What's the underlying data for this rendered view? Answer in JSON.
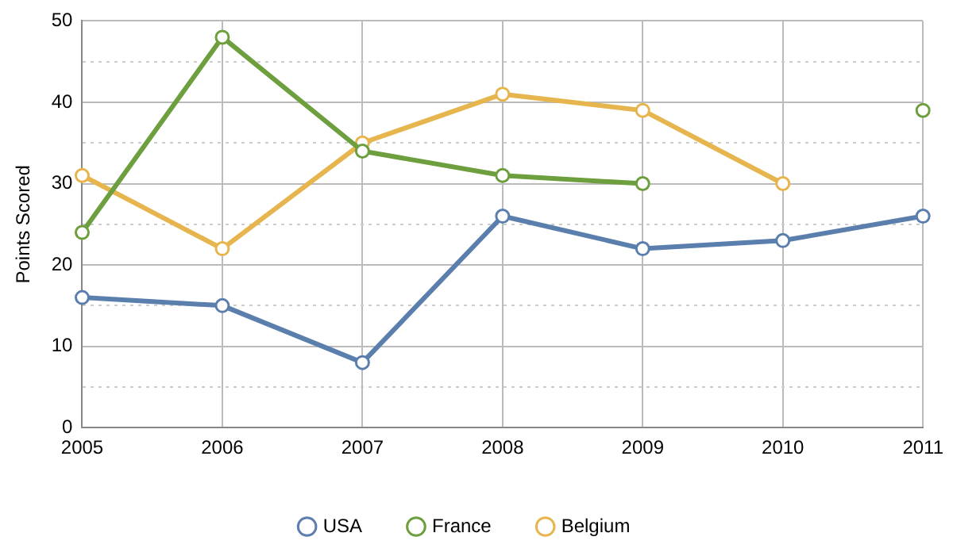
{
  "chart_data": {
    "type": "line",
    "ylabel": "Points Scored",
    "categories": [
      "2005",
      "2006",
      "2007",
      "2008",
      "2009",
      "2010",
      "2011"
    ],
    "series": [
      {
        "name": "USA",
        "color": "#5b7fad",
        "values": [
          16,
          15,
          8,
          26,
          22,
          23,
          26
        ]
      },
      {
        "name": "France",
        "color": "#6e9f3e",
        "values": [
          24,
          48,
          34,
          31,
          30,
          null,
          39
        ]
      },
      {
        "name": "Belgium",
        "color": "#e6b54e",
        "values": [
          31,
          22,
          35,
          41,
          39,
          30,
          null
        ]
      }
    ],
    "ylim": [
      0,
      50
    ],
    "yticks": [
      0,
      {
        "value": 5,
        "label": null
      },
      10,
      {
        "value": 15,
        "label": null
      },
      20,
      {
        "value": 25,
        "label": null
      },
      30,
      {
        "value": 35,
        "label": null
      },
      40,
      {
        "value": 45,
        "label": null
      },
      50
    ],
    "grid": true,
    "legend": "bottom",
    "marker": "circle",
    "line_style": "solid"
  }
}
